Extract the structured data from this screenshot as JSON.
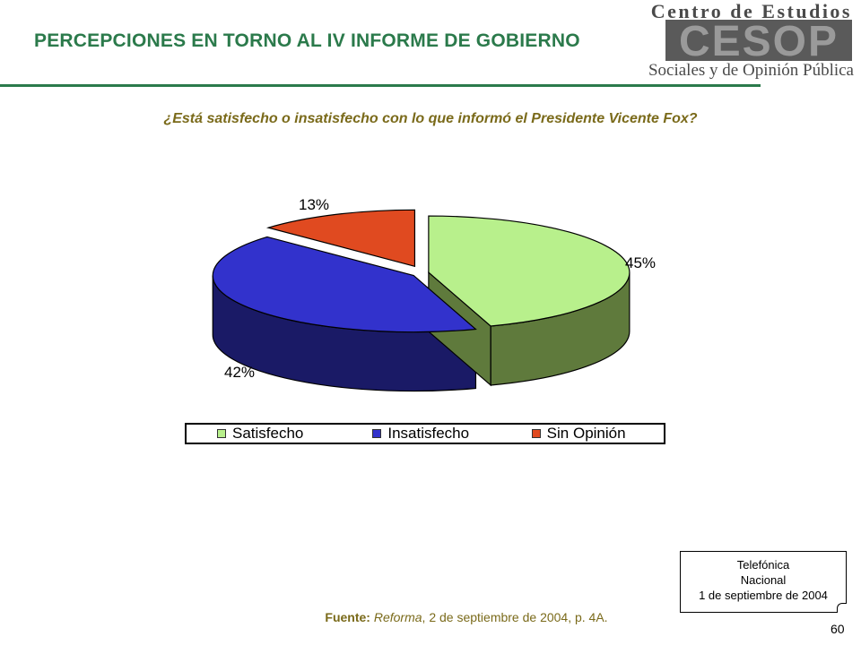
{
  "header": {
    "title": "PERCEPCIONES EN TORNO AL IV INFORME DE GOBIERNO",
    "logo": {
      "top_text": "Centro de Estudios",
      "mark_text": "CESOP",
      "bottom_text": "Sociales y de Opinión Pública"
    }
  },
  "question": "¿Está satisfecho o insatisfecho con lo que informó el Presidente Vicente Fox?",
  "chart_data": {
    "type": "pie",
    "title": "¿Está satisfecho o insatisfecho con lo que informó el Presidente Vicente Fox?",
    "categories": [
      "Satisfecho",
      "Insatisfecho",
      "Sin Opinión"
    ],
    "values": [
      45,
      42,
      13
    ],
    "value_labels": [
      "45%",
      "42%",
      "13%"
    ],
    "colors": [
      "#b8f08c",
      "#3232cc",
      "#e04a20"
    ],
    "side_colors": [
      "#5f7a3c",
      "#1a1a66",
      "#8a2a10"
    ],
    "style": "3d-exploded",
    "legend": "bottom"
  },
  "legend": {
    "items": [
      {
        "label": "Satisfecho",
        "color": "#b8f08c"
      },
      {
        "label": "Insatisfecho",
        "color": "#3232cc"
      },
      {
        "label": "Sin Opinión",
        "color": "#e04a20"
      }
    ]
  },
  "source": {
    "prefix": "Fuente:",
    "publication": "Reforma",
    "rest": ", 2 de septiembre de 2004, p. 4A."
  },
  "note": {
    "line1": "Telefónica",
    "line2": "Nacional",
    "line3": "1 de septiembre de 2004"
  },
  "page_number": "60"
}
